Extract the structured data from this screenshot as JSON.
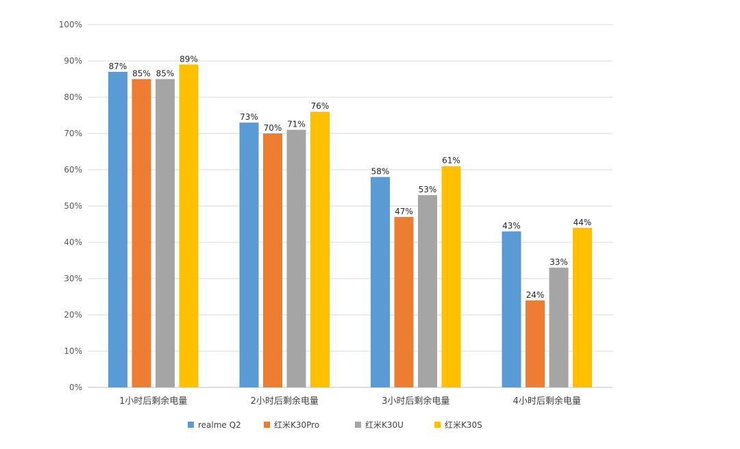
{
  "chart_data": {
    "type": "bar",
    "title": "",
    "xlabel": "",
    "ylabel": "",
    "ylim": [
      0,
      100
    ],
    "y_ticks": [
      0,
      10,
      20,
      30,
      40,
      50,
      60,
      70,
      80,
      90,
      100
    ],
    "y_tick_suffix": "%",
    "grid": true,
    "legend_position": "bottom",
    "categories": [
      "1小时后剩余电量",
      "2小时后剩余电量",
      "3小时后剩余电量",
      "4小时后剩余电量"
    ],
    "series": [
      {
        "name": "realme Q2",
        "color": "#5b9bd5",
        "values": [
          87,
          73,
          58,
          43
        ]
      },
      {
        "name": "红米K30Pro",
        "color": "#ed7d31",
        "values": [
          85,
          70,
          47,
          24
        ]
      },
      {
        "name": "红米K30U",
        "color": "#a5a5a5",
        "values": [
          85,
          71,
          53,
          33
        ]
      },
      {
        "name": "红米K30S",
        "color": "#ffc000",
        "values": [
          89,
          76,
          61,
          44
        ]
      }
    ]
  },
  "colors": {
    "grid": "#d9d9d9",
    "axis": "#bfbfbf"
  }
}
